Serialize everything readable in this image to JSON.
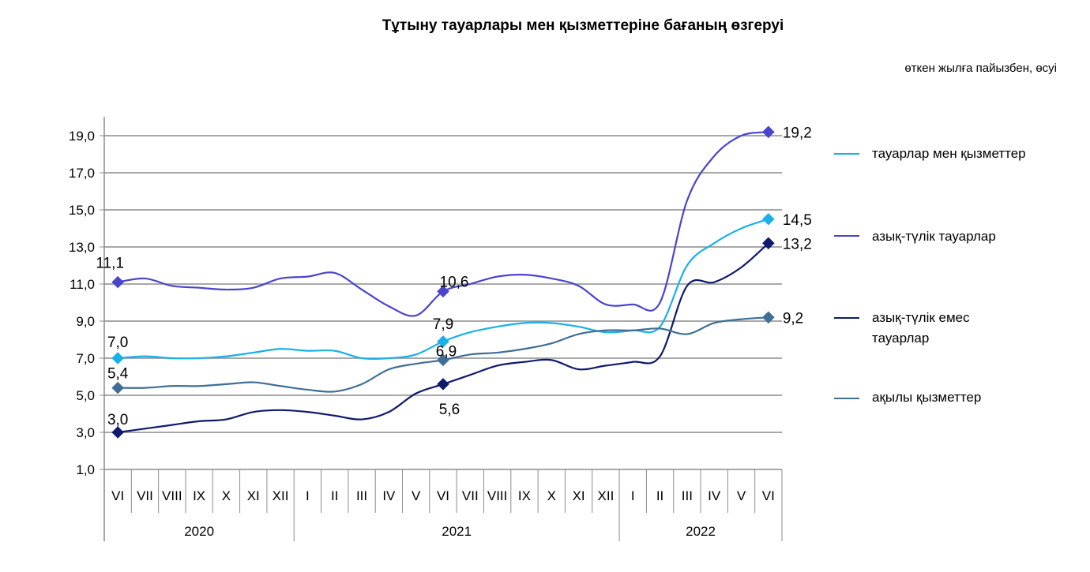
{
  "chart_data": {
    "type": "line",
    "title": "Тұтыну тауарлары мен қызметтеріне бағаның өзгеруі",
    "subtitle": "өткен жылға пайызбен, өсуі",
    "ylim": [
      1.0,
      20.0
    ],
    "yticks": [
      "1,0",
      "3,0",
      "5,0",
      "7,0",
      "9,0",
      "11,0",
      "13,0",
      "15,0",
      "17,0",
      "19,0"
    ],
    "ytick_values": [
      1,
      3,
      5,
      7,
      9,
      11,
      13,
      15,
      17,
      19
    ],
    "months": [
      "VI",
      "VII",
      "VIII",
      "IX",
      "X",
      "XI",
      "XII",
      "I",
      "II",
      "III",
      "IV",
      "V",
      "VI",
      "VII",
      "VIII",
      "IX",
      "X",
      "XI",
      "XII",
      "I",
      "II",
      "III",
      "IV",
      "V",
      "VI"
    ],
    "years": [
      {
        "label": "2020",
        "start": 0,
        "end": 7
      },
      {
        "label": "2021",
        "start": 7,
        "end": 19
      },
      {
        "label": "2022",
        "start": 19,
        "end": 25
      }
    ],
    "grid": true,
    "legend_position": "right",
    "series": [
      {
        "name": "тауарлар мен қызметтер",
        "color": "#1ab0e8",
        "values": [
          7.0,
          7.1,
          7.0,
          7.0,
          7.1,
          7.3,
          7.5,
          7.4,
          7.4,
          7.0,
          7.0,
          7.2,
          7.9,
          8.4,
          8.7,
          8.9,
          8.9,
          8.7,
          8.4,
          8.5,
          8.7,
          12.0,
          13.2,
          14.0,
          14.5
        ],
        "labels": [
          {
            "i": 0,
            "text": "7,0"
          },
          {
            "i": 12,
            "text": "7,9"
          },
          {
            "i": 24,
            "text": "14,5"
          }
        ]
      },
      {
        "name": "азық-түлік тауарлар",
        "color": "#4a44cc",
        "values": [
          11.1,
          11.3,
          10.9,
          10.8,
          10.7,
          10.8,
          11.3,
          11.4,
          11.6,
          10.7,
          9.8,
          9.3,
          10.6,
          11.0,
          11.4,
          11.5,
          11.3,
          10.9,
          9.9,
          9.9,
          10.0,
          15.5,
          17.9,
          19.0,
          19.2
        ],
        "labels": [
          {
            "i": 0,
            "text": "11,1"
          },
          {
            "i": 12,
            "text": "10,6"
          },
          {
            "i": 24,
            "text": "19,2"
          }
        ]
      },
      {
        "name": "азық-түлік емес тауарлар",
        "color": "#0f1a6e",
        "values": [
          3.0,
          3.2,
          3.4,
          3.6,
          3.7,
          4.1,
          4.2,
          4.1,
          3.9,
          3.7,
          4.1,
          5.1,
          5.6,
          6.1,
          6.6,
          6.8,
          6.9,
          6.4,
          6.6,
          6.8,
          7.1,
          10.9,
          11.1,
          11.9,
          13.2
        ],
        "labels": [
          {
            "i": 0,
            "text": "3,0"
          },
          {
            "i": 12,
            "text": "5,6"
          },
          {
            "i": 24,
            "text": "13,2"
          }
        ]
      },
      {
        "name": "ақылы қызметтер",
        "color": "#3f6e96",
        "values": [
          5.4,
          5.4,
          5.5,
          5.5,
          5.6,
          5.7,
          5.5,
          5.3,
          5.2,
          5.6,
          6.4,
          6.7,
          6.9,
          7.2,
          7.3,
          7.5,
          7.8,
          8.3,
          8.5,
          8.5,
          8.6,
          8.3,
          8.9,
          9.1,
          9.2
        ],
        "labels": [
          {
            "i": 0,
            "text": "5,4"
          },
          {
            "i": 12,
            "text": "6,9"
          },
          {
            "i": 24,
            "text": "9,2"
          }
        ]
      }
    ]
  }
}
